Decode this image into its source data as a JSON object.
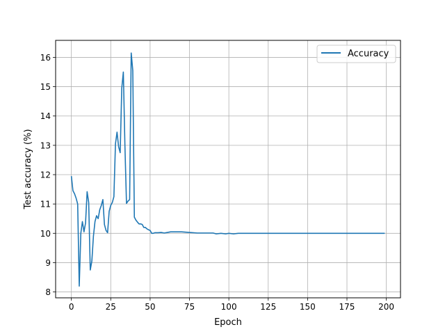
{
  "chart_data": {
    "type": "line",
    "title": "",
    "xlabel": "Epoch",
    "ylabel": "Test accuracy (%)",
    "xlim": [
      -10,
      209
    ],
    "ylim": [
      7.8,
      16.58
    ],
    "x_ticks": [
      0,
      25,
      50,
      75,
      100,
      125,
      150,
      175,
      200
    ],
    "y_ticks": [
      8,
      9,
      10,
      11,
      12,
      13,
      14,
      15,
      16
    ],
    "grid": true,
    "legend_position": "upper right",
    "series": [
      {
        "name": "Accuracy",
        "color": "#1f77b4",
        "points": [
          [
            0,
            11.95
          ],
          [
            1,
            11.45
          ],
          [
            2,
            11.35
          ],
          [
            3,
            11.2
          ],
          [
            4,
            11.0
          ],
          [
            5,
            8.2
          ],
          [
            6,
            10.0
          ],
          [
            7,
            10.4
          ],
          [
            8,
            10.05
          ],
          [
            9,
            10.35
          ],
          [
            10,
            11.42
          ],
          [
            11,
            11.05
          ],
          [
            12,
            8.75
          ],
          [
            13,
            9.05
          ],
          [
            14,
            9.9
          ],
          [
            15,
            10.4
          ],
          [
            16,
            10.6
          ],
          [
            17,
            10.5
          ],
          [
            18,
            10.8
          ],
          [
            19,
            10.95
          ],
          [
            20,
            11.15
          ],
          [
            21,
            10.3
          ],
          [
            22,
            10.1
          ],
          [
            23,
            10.02
          ],
          [
            24,
            10.75
          ],
          [
            25,
            10.95
          ],
          [
            26,
            11.05
          ],
          [
            27,
            11.25
          ],
          [
            28,
            13.05
          ],
          [
            29,
            13.45
          ],
          [
            30,
            12.95
          ],
          [
            31,
            12.75
          ],
          [
            32,
            14.95
          ],
          [
            33,
            15.5
          ],
          [
            34,
            13.0
          ],
          [
            35,
            11.02
          ],
          [
            36,
            11.1
          ],
          [
            37,
            11.15
          ],
          [
            38,
            16.15
          ],
          [
            39,
            15.55
          ],
          [
            40,
            10.55
          ],
          [
            41,
            10.45
          ],
          [
            42,
            10.38
          ],
          [
            43,
            10.32
          ],
          [
            44,
            10.32
          ],
          [
            45,
            10.3
          ],
          [
            46,
            10.2
          ],
          [
            47,
            10.2
          ],
          [
            48,
            10.15
          ],
          [
            49,
            10.12
          ],
          [
            50,
            10.1
          ],
          [
            51,
            10.0
          ],
          [
            52,
            10.0
          ],
          [
            53,
            10.02
          ],
          [
            55,
            10.02
          ],
          [
            57,
            10.03
          ],
          [
            59,
            10.01
          ],
          [
            61,
            10.03
          ],
          [
            63,
            10.05
          ],
          [
            70,
            10.05
          ],
          [
            75,
            10.03
          ],
          [
            80,
            10.01
          ],
          [
            90,
            10.01
          ],
          [
            92,
            9.98
          ],
          [
            95,
            10.0
          ],
          [
            98,
            9.98
          ],
          [
            100,
            10.0
          ],
          [
            103,
            9.98
          ],
          [
            106,
            10.0
          ],
          [
            199,
            10.0
          ]
        ]
      }
    ]
  }
}
